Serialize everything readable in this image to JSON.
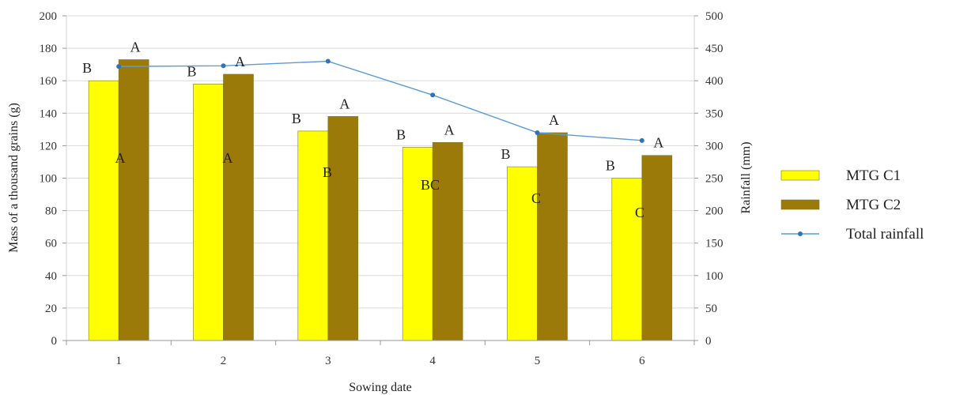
{
  "chart_data": {
    "type": "bar",
    "categories": [
      "1",
      "2",
      "3",
      "4",
      "5",
      "6"
    ],
    "xlabel": "Sowing date",
    "ylabel": "Mass of a thousand grains (g)",
    "y2label": "Rainfall  (mm)",
    "ylim": [
      0,
      200
    ],
    "yticks": [
      "0",
      "20",
      "40",
      "60",
      "80",
      "100",
      "120",
      "140",
      "160",
      "180",
      "200"
    ],
    "y2lim": [
      0,
      500
    ],
    "y2ticks": [
      "0",
      "50",
      "100",
      "150",
      "200",
      "250",
      "300",
      "350",
      "400",
      "450",
      "500"
    ],
    "grid": true,
    "legend_position": "right",
    "series": [
      {
        "name": "MTG C1",
        "kind": "bar",
        "axis": "left",
        "color": "#FFFF00",
        "values": [
          160,
          158,
          129,
          119,
          107,
          100
        ],
        "top_letters": [
          "B",
          "B",
          "B",
          "B",
          "B",
          "B"
        ]
      },
      {
        "name": "MTG C2",
        "kind": "bar",
        "axis": "left",
        "color": "#9C7A0A",
        "values": [
          173,
          164,
          138,
          122,
          128,
          114
        ],
        "top_letters": [
          "A",
          "A",
          "A",
          "A",
          "A",
          "A"
        ]
      },
      {
        "name": "Total rainfall",
        "kind": "line",
        "axis": "right",
        "color": "#5B9BD5",
        "values": [
          422,
          423,
          430,
          378,
          320,
          308
        ]
      }
    ],
    "group_letters": [
      "A",
      "A",
      "B",
      "BC",
      "C",
      "C"
    ]
  }
}
